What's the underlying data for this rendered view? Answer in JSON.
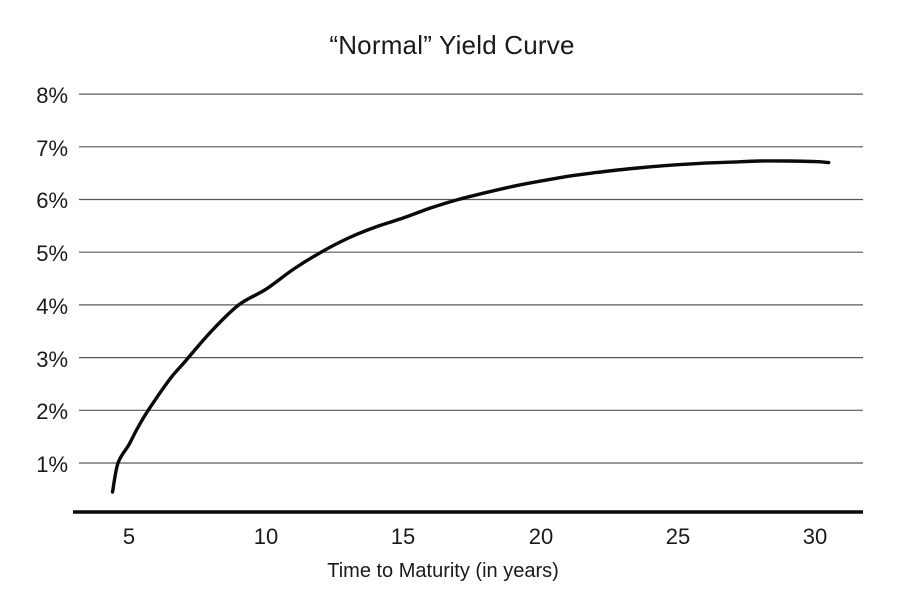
{
  "chart_data": {
    "type": "line",
    "title": "“Normal” Yield Curve",
    "xlabel": "Time to Maturity (in years)",
    "ylabel": "",
    "x_ticks": [
      5,
      10,
      15,
      20,
      25,
      30
    ],
    "x_tick_labels": [
      "5",
      "10",
      "15",
      "20",
      "25",
      "30"
    ],
    "y_ticks": [
      1,
      2,
      3,
      4,
      5,
      6,
      7,
      8
    ],
    "y_tick_labels": [
      "1%",
      "2%",
      "3%",
      "4%",
      "5%",
      "6%",
      "7%",
      "8%"
    ],
    "xlim": [
      3.2,
      31.8
    ],
    "ylim": [
      0,
      8
    ],
    "grid": "horizontal-only",
    "legend": "none",
    "colors": {
      "line": "#0a0a0a",
      "grid": "#595959",
      "axis": "#0a0a0a",
      "text": "#1a1a1a",
      "background": "#ffffff"
    },
    "series": [
      {
        "name": "Normal yield curve",
        "points": [
          [
            4.4,
            0.45
          ],
          [
            4.6,
            1.0
          ],
          [
            5.0,
            1.35
          ],
          [
            5.3,
            1.65
          ],
          [
            5.7,
            2.0
          ],
          [
            6.5,
            2.6
          ],
          [
            7.0,
            2.9
          ],
          [
            8.0,
            3.5
          ],
          [
            9.0,
            4.0
          ],
          [
            10,
            4.3
          ],
          [
            11,
            4.68
          ],
          [
            12,
            5.0
          ],
          [
            13,
            5.27
          ],
          [
            14,
            5.48
          ],
          [
            15,
            5.65
          ],
          [
            16,
            5.84
          ],
          [
            17,
            6.0
          ],
          [
            18,
            6.13
          ],
          [
            19,
            6.25
          ],
          [
            20,
            6.35
          ],
          [
            21,
            6.44
          ],
          [
            22,
            6.51
          ],
          [
            23,
            6.57
          ],
          [
            24,
            6.62
          ],
          [
            25,
            6.66
          ],
          [
            26,
            6.69
          ],
          [
            27,
            6.71
          ],
          [
            28,
            6.73
          ],
          [
            29,
            6.73
          ],
          [
            30,
            6.72
          ],
          [
            30.5,
            6.7
          ]
        ]
      }
    ]
  }
}
